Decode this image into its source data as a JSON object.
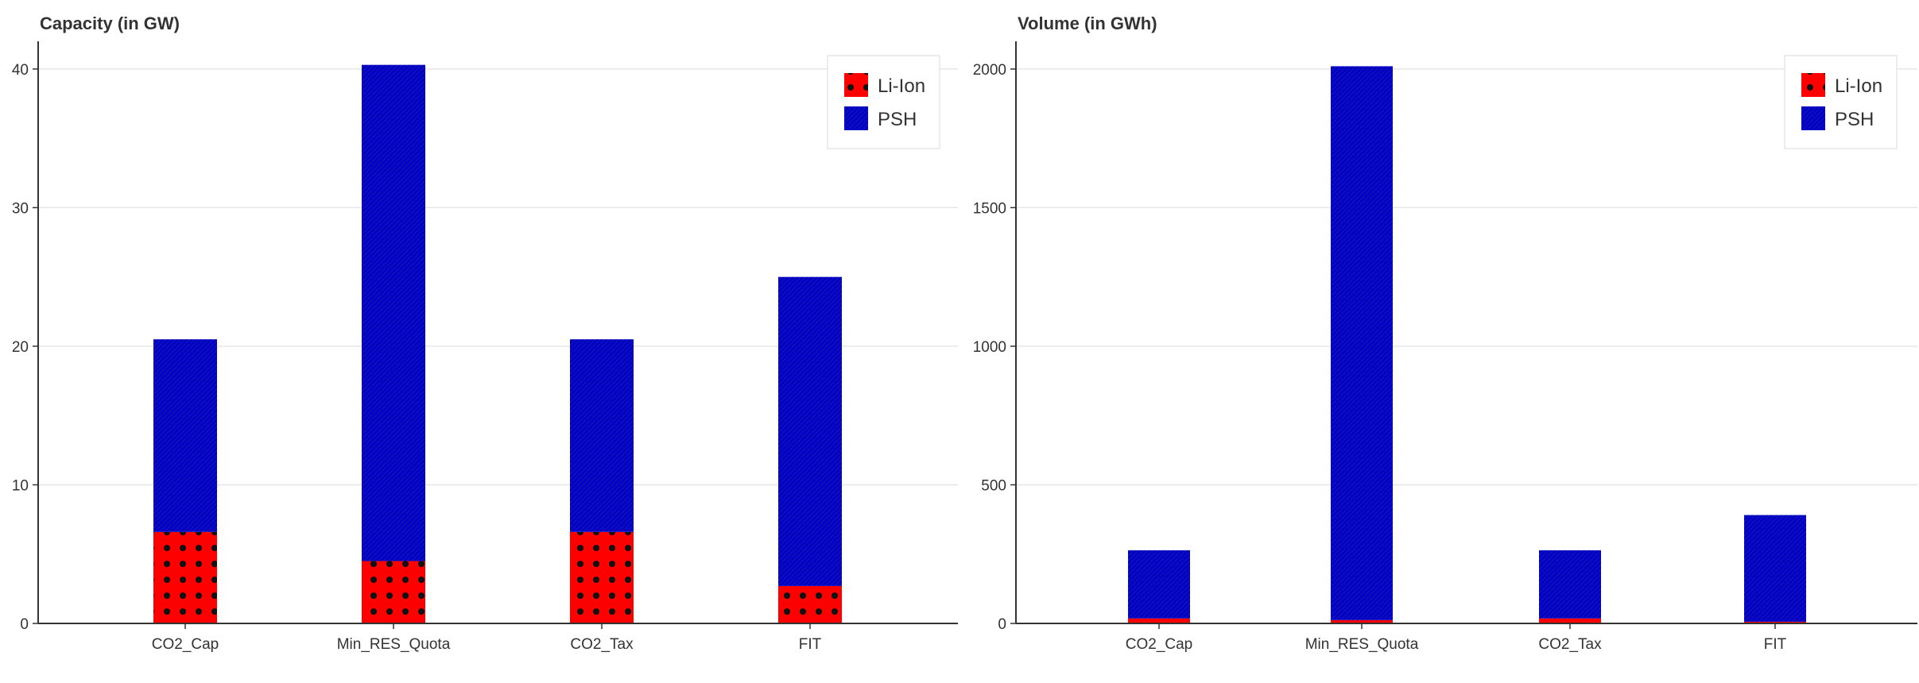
{
  "colors": {
    "li_ion": "#ff0000",
    "psh": "#0000c8",
    "dot": "#111111"
  },
  "charts": [
    {
      "title": "Capacity (in GW)",
      "legend": [
        {
          "label": "Li-Ion"
        },
        {
          "label": "PSH"
        }
      ]
    },
    {
      "title": "Volume (in GWh)",
      "legend": [
        {
          "label": "Li-Ion"
        },
        {
          "label": "PSH"
        }
      ]
    }
  ],
  "chart_data": [
    {
      "type": "bar",
      "stacked": true,
      "title": "Capacity (in GW)",
      "xlabel": "",
      "ylabel": "",
      "categories": [
        "CO2_Cap",
        "Min_RES_Quota",
        "CO2_Tax",
        "FIT"
      ],
      "series": [
        {
          "name": "Li-Ion",
          "values": [
            6.6,
            4.5,
            6.6,
            2.7
          ]
        },
        {
          "name": "PSH",
          "values": [
            13.9,
            35.8,
            13.9,
            22.3
          ]
        }
      ],
      "ylim": [
        0,
        42
      ],
      "yticks": [
        "0",
        "10",
        "20",
        "30",
        "40"
      ],
      "grid": true,
      "legend_position": "top-right"
    },
    {
      "type": "bar",
      "stacked": true,
      "title": "Volume (in GWh)",
      "xlabel": "",
      "ylabel": "",
      "categories": [
        "CO2_Cap",
        "Min_RES_Quota",
        "CO2_Tax",
        "FIT"
      ],
      "series": [
        {
          "name": "Li-Ion",
          "values": [
            18,
            12,
            18,
            6
          ]
        },
        {
          "name": "PSH",
          "values": [
            246,
            1998,
            246,
            385
          ]
        }
      ],
      "ylim": [
        0,
        2100
      ],
      "yticks": [
        "0",
        "500",
        "1000",
        "1500",
        "2000"
      ],
      "grid": true,
      "legend_position": "top-right"
    }
  ]
}
